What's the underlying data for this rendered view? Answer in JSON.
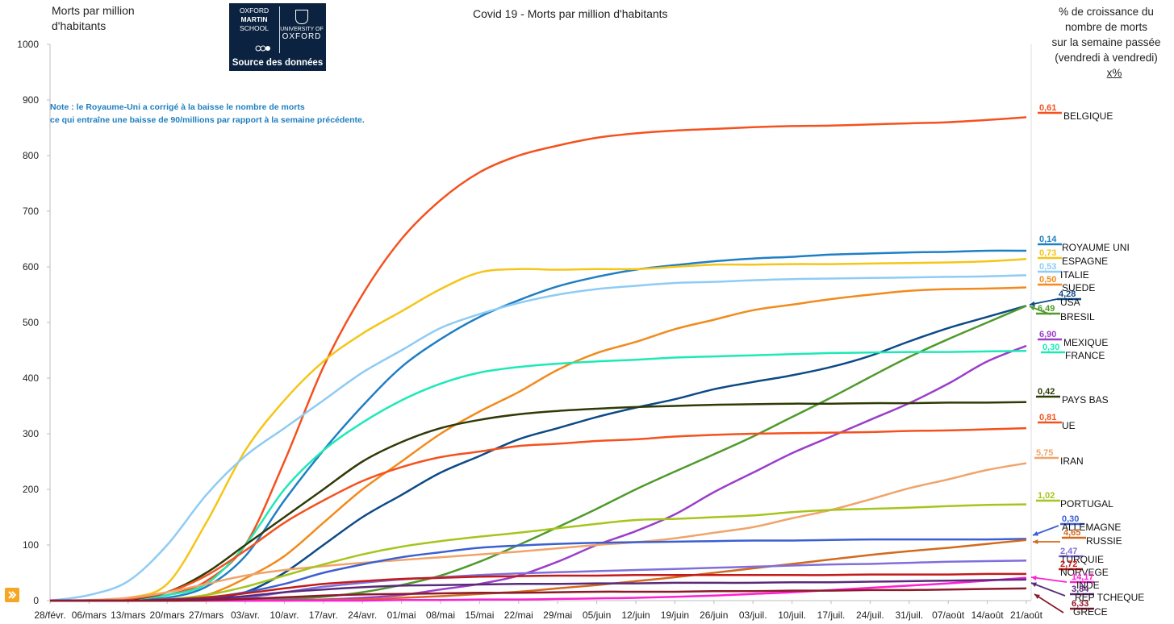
{
  "ylabel_lines": [
    "Morts par million",
    "d'habitants"
  ],
  "right_note_lines": [
    "% de croissance du",
    "nombre de morts",
    "sur la semaine passée",
    "(vendredi à vendredi)"
  ],
  "right_note_unit": "x%",
  "note_lines": [
    "Note  : le Royaume-Uni a corrigé à la baisse le nombre de morts",
    "ce qui entraîne une baisse de 90/millions par rapport à la semaine précédente."
  ],
  "logo": {
    "left_lines": [
      "OXFORD",
      "MARTIN",
      "SCHOOL"
    ],
    "right_small": "UNIVERSITY OF",
    "right_big": "OXFORD",
    "caption": "Source des données"
  },
  "chart_data": {
    "type": "line",
    "title": "Covid 19 - Morts par million d'habitants",
    "xlabel": "",
    "ylabel": "Morts par million d'habitants",
    "ylim": [
      0,
      1000
    ],
    "yticks": [
      0,
      100,
      200,
      300,
      400,
      500,
      600,
      700,
      800,
      900,
      1000
    ],
    "x": [
      "28/févr.",
      "06/mars",
      "13/mars",
      "20/mars",
      "27/mars",
      "03/avr.",
      "10/avr.",
      "17/avr.",
      "24/avr.",
      "01/mai",
      "08/mai",
      "15/mai",
      "22/mai",
      "29/mai",
      "05/juin",
      "12/juin",
      "19/juin",
      "26/juin",
      "03/juil.",
      "10/juil.",
      "17/juil.",
      "24/juil.",
      "31/juil.",
      "07/août",
      "14/août",
      "21/août"
    ],
    "grid": false,
    "series": [
      {
        "name": "BELGIQUE",
        "growth": "0,61",
        "color": "#f4511e",
        "values": [
          0,
          0,
          2,
          10,
          35,
          100,
          250,
          420,
          550,
          650,
          720,
          770,
          800,
          818,
          832,
          840,
          845,
          848,
          851,
          853,
          854,
          856,
          858,
          860,
          864,
          869
        ]
      },
      {
        "name": "ROYAUME UNI",
        "growth": "0,14",
        "color": "#1f7fc4",
        "values": [
          0,
          0,
          1,
          5,
          25,
          80,
          180,
          270,
          350,
          420,
          470,
          510,
          540,
          565,
          582,
          595,
          603,
          610,
          615,
          618,
          622,
          624,
          626,
          627,
          629,
          629
        ]
      },
      {
        "name": "ESPAGNE",
        "growth": "0,73",
        "color": "#f5c518",
        "values": [
          0,
          0,
          5,
          30,
          140,
          270,
          360,
          430,
          480,
          520,
          560,
          590,
          596,
          595,
          596,
          596,
          600,
          604,
          604,
          605,
          605,
          606,
          607,
          608,
          610,
          614
        ]
      },
      {
        "name": "ITALIE",
        "growth": "0,53",
        "color": "#8ecbf5",
        "values": [
          0,
          10,
          35,
          100,
          190,
          260,
          310,
          360,
          410,
          450,
          490,
          515,
          535,
          550,
          560,
          566,
          571,
          573,
          576,
          578,
          579,
          580,
          581,
          582,
          583,
          585
        ]
      },
      {
        "name": "SUEDE",
        "growth": "0,50",
        "color": "#f28a1c",
        "values": [
          0,
          0,
          0,
          2,
          10,
          40,
          80,
          140,
          200,
          250,
          300,
          340,
          375,
          415,
          445,
          465,
          488,
          505,
          522,
          532,
          542,
          550,
          557,
          560,
          561,
          563
        ]
      },
      {
        "name": "USA",
        "growth": "4,28",
        "color": "#0d4a86",
        "values": [
          0,
          0,
          0,
          1,
          5,
          15,
          50,
          100,
          150,
          190,
          230,
          260,
          290,
          310,
          330,
          347,
          362,
          380,
          393,
          405,
          420,
          440,
          466,
          490,
          510,
          530
        ]
      },
      {
        "name": "BRESIL",
        "growth": "6,49",
        "color": "#4f9a2b",
        "values": [
          0,
          0,
          0,
          0,
          0,
          1,
          3,
          7,
          15,
          28,
          45,
          70,
          100,
          132,
          165,
          200,
          232,
          263,
          295,
          330,
          365,
          402,
          438,
          470,
          500,
          530
        ]
      },
      {
        "name": "MEXIQUE",
        "growth": "6,90",
        "color": "#9b3ec9",
        "values": [
          0,
          0,
          0,
          0,
          0,
          0,
          1,
          2,
          5,
          10,
          20,
          30,
          45,
          70,
          100,
          125,
          155,
          195,
          230,
          265,
          295,
          325,
          355,
          390,
          430,
          458
        ]
      },
      {
        "name": "FRANCE",
        "growth": "0,30",
        "color": "#1de9b6",
        "values": [
          0,
          0,
          2,
          10,
          30,
          100,
          200,
          270,
          320,
          360,
          390,
          410,
          420,
          426,
          430,
          433,
          437,
          439,
          441,
          443,
          445,
          446,
          447,
          447,
          448,
          449
        ]
      },
      {
        "name": "PAYS BAS",
        "growth": "0,42",
        "color": "#2f3a07",
        "values": [
          0,
          0,
          2,
          15,
          50,
          100,
          150,
          200,
          250,
          285,
          310,
          325,
          335,
          341,
          345,
          348,
          350,
          352,
          353,
          354,
          354,
          355,
          355,
          356,
          356,
          357
        ]
      },
      {
        "name": "UE",
        "growth": "0,81",
        "color": "#f4511e",
        "values": [
          0,
          0,
          3,
          15,
          45,
          90,
          140,
          180,
          215,
          240,
          258,
          268,
          278,
          282,
          287,
          290,
          295,
          298,
          300,
          301,
          302,
          303,
          305,
          306,
          308,
          310
        ]
      },
      {
        "name": "IRAN",
        "growth": "5,75",
        "color": "#f0a46a",
        "values": [
          0,
          1,
          5,
          15,
          30,
          45,
          55,
          62,
          68,
          73,
          78,
          83,
          88,
          94,
          100,
          105,
          112,
          122,
          132,
          148,
          163,
          182,
          202,
          218,
          235,
          247
        ]
      },
      {
        "name": "PORTUGAL",
        "growth": "1,02",
        "color": "#a5c51d",
        "values": [
          0,
          0,
          0,
          2,
          10,
          25,
          45,
          65,
          83,
          97,
          107,
          115,
          122,
          130,
          138,
          145,
          147,
          150,
          153,
          159,
          163,
          165,
          167,
          170,
          172,
          173
        ]
      },
      {
        "name": "ALLEMAGNE",
        "growth": "0,30",
        "color": "#3b5fd1",
        "values": [
          0,
          0,
          0,
          1,
          5,
          15,
          30,
          50,
          65,
          78,
          87,
          95,
          99,
          102,
          104,
          105,
          106,
          107,
          108,
          108,
          109,
          110,
          110,
          110,
          110,
          111
        ]
      },
      {
        "name": "RUSSIE",
        "growth": "4,65",
        "color": "#d2691e",
        "values": [
          0,
          0,
          0,
          0,
          0,
          0,
          0,
          1,
          2,
          5,
          8,
          12,
          16,
          22,
          28,
          35,
          42,
          50,
          58,
          66,
          74,
          82,
          89,
          95,
          102,
          109
        ]
      },
      {
        "name": "TURQUIE",
        "growth": "2,47",
        "color": "#7e6fdc",
        "values": [
          0,
          0,
          0,
          0,
          1,
          5,
          15,
          25,
          32,
          38,
          42,
          46,
          49,
          51,
          53,
          55,
          57,
          59,
          61,
          63,
          65,
          66,
          68,
          70,
          71,
          72
        ]
      },
      {
        "name": "NORVEGE",
        "growth": "2,72",
        "color": "#c41a1a",
        "values": [
          0,
          0,
          0,
          2,
          6,
          13,
          22,
          30,
          35,
          39,
          41,
          43,
          44,
          45,
          45,
          46,
          46,
          46,
          46,
          46,
          46,
          47,
          47,
          47,
          48,
          48
        ]
      },
      {
        "name": "INDE",
        "growth": "14,17",
        "color": "#ff1ed2",
        "values": [
          0,
          0,
          0,
          0,
          0,
          0,
          0,
          0,
          0,
          1,
          1,
          2,
          2,
          3,
          4,
          5,
          7,
          9,
          12,
          15,
          19,
          23,
          27,
          31,
          36,
          41
        ]
      },
      {
        "name": "REP TCHEQUE",
        "growth": "3,84",
        "color": "#5a2a7a",
        "values": [
          0,
          0,
          0,
          1,
          3,
          8,
          15,
          20,
          24,
          27,
          28,
          29,
          30,
          30,
          31,
          31,
          32,
          32,
          32,
          33,
          33,
          34,
          35,
          36,
          37,
          38
        ]
      },
      {
        "name": "GRECE",
        "growth": "6,33",
        "color": "#8b1a2b",
        "values": [
          0,
          0,
          0,
          0,
          1,
          3,
          6,
          9,
          11,
          12,
          13,
          14,
          14,
          15,
          16,
          16,
          16,
          17,
          17,
          18,
          18,
          19,
          19,
          20,
          21,
          22
        ]
      }
    ]
  }
}
